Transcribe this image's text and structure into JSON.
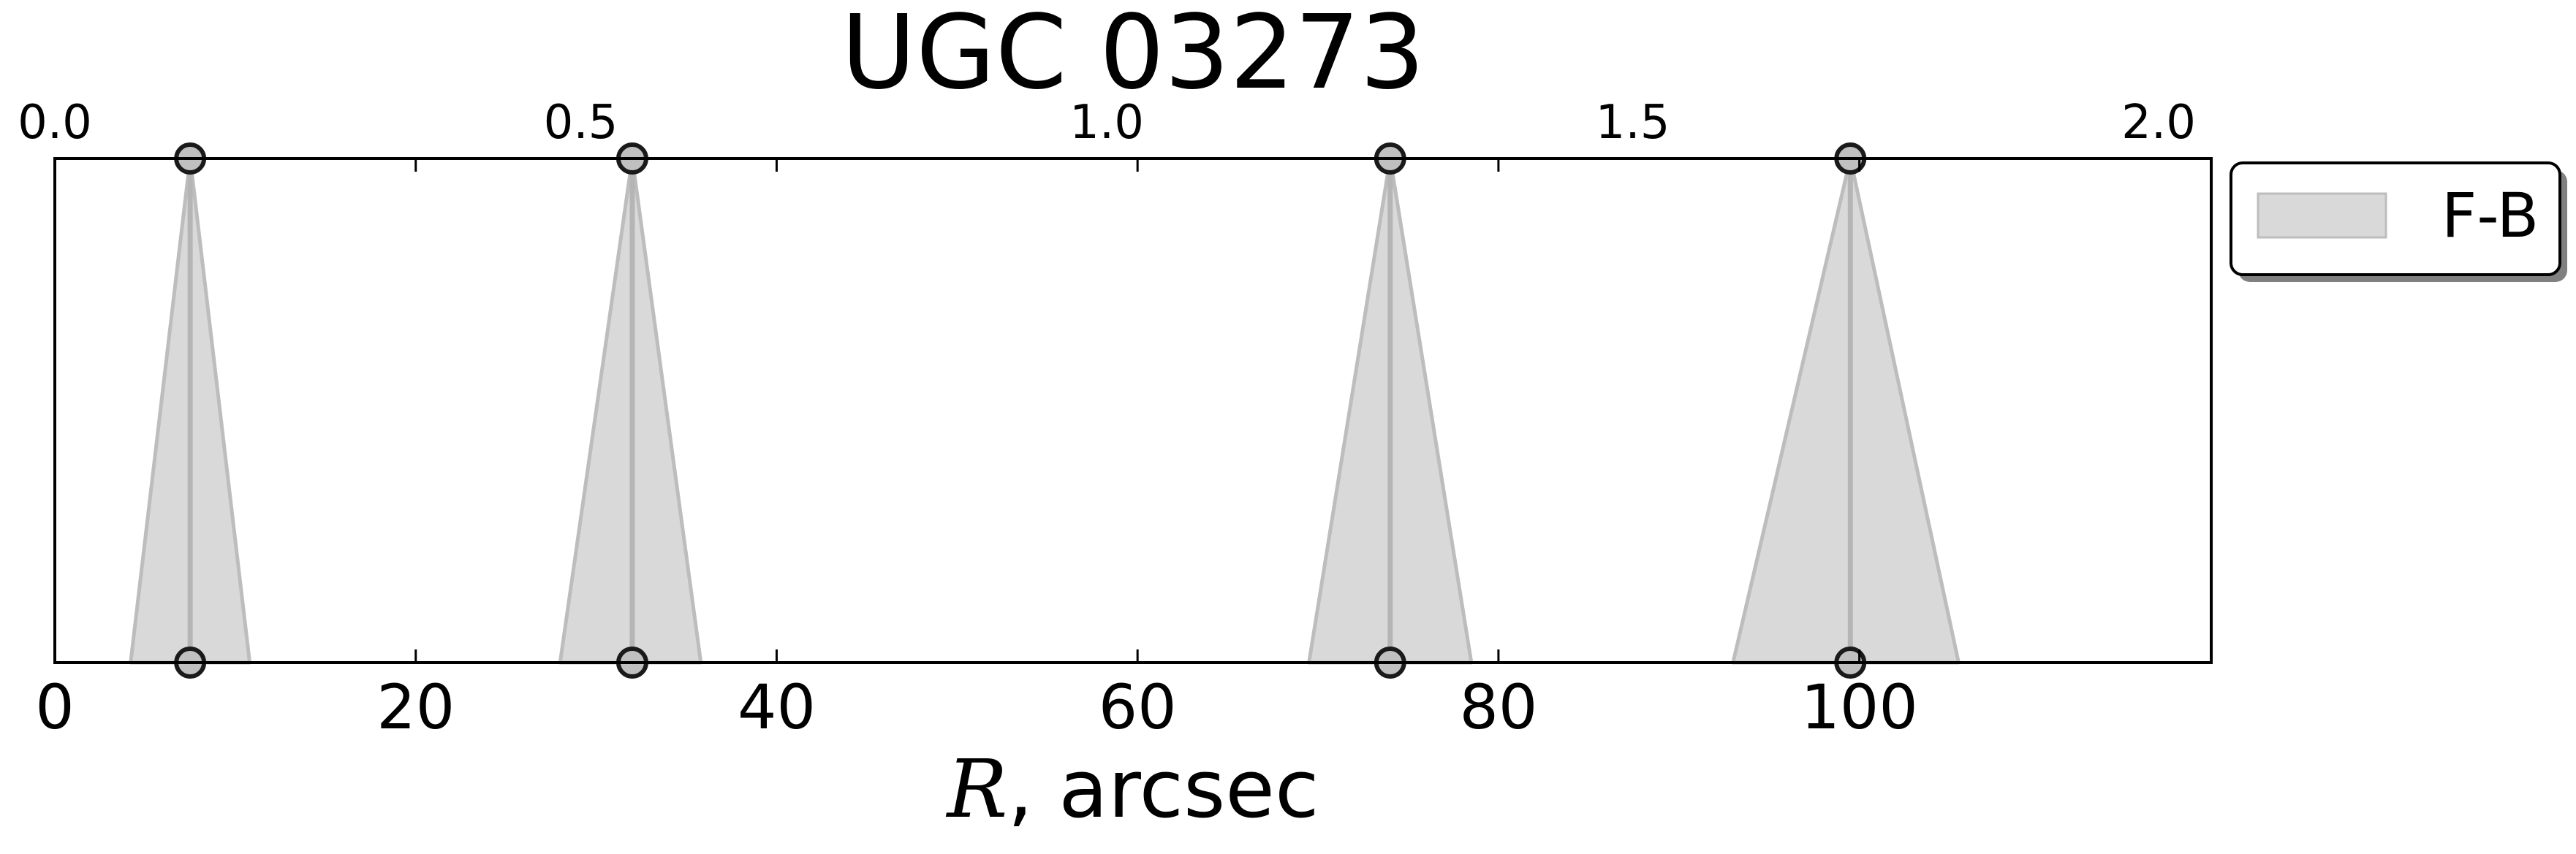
{
  "chart_data": {
    "type": "area",
    "title": "UGC 03273",
    "xlabel_var": "R",
    "xlabel_unit": ", arcsec",
    "xlim": [
      0,
      119.5
    ],
    "xticks": [
      0,
      20,
      40,
      60,
      80,
      100
    ],
    "xtick_labels": [
      "0",
      "20",
      "40",
      "60",
      "80",
      "100"
    ],
    "top_axis": {
      "xlim": [
        0,
        2.05
      ],
      "xticks": [
        0.0,
        0.5,
        1.0,
        1.5,
        2.0
      ],
      "xtick_labels": [
        "0.0",
        "0.5",
        "1.0",
        "1.5",
        "2.0"
      ]
    },
    "grid": false,
    "legend": {
      "position": "outside-right-top",
      "entries": [
        "F-B"
      ]
    },
    "series": [
      {
        "name": "F-B",
        "color": "#d9d9d9",
        "edge_color": "#bdbdbd",
        "markers": [
          {
            "center": 7.5,
            "left": 4.2,
            "right": 10.8
          },
          {
            "center": 32.0,
            "left": 28.0,
            "right": 35.8
          },
          {
            "center": 74.0,
            "left": 69.5,
            "right": 78.5
          },
          {
            "center": 99.5,
            "left": 93.0,
            "right": 105.5
          }
        ]
      }
    ]
  }
}
